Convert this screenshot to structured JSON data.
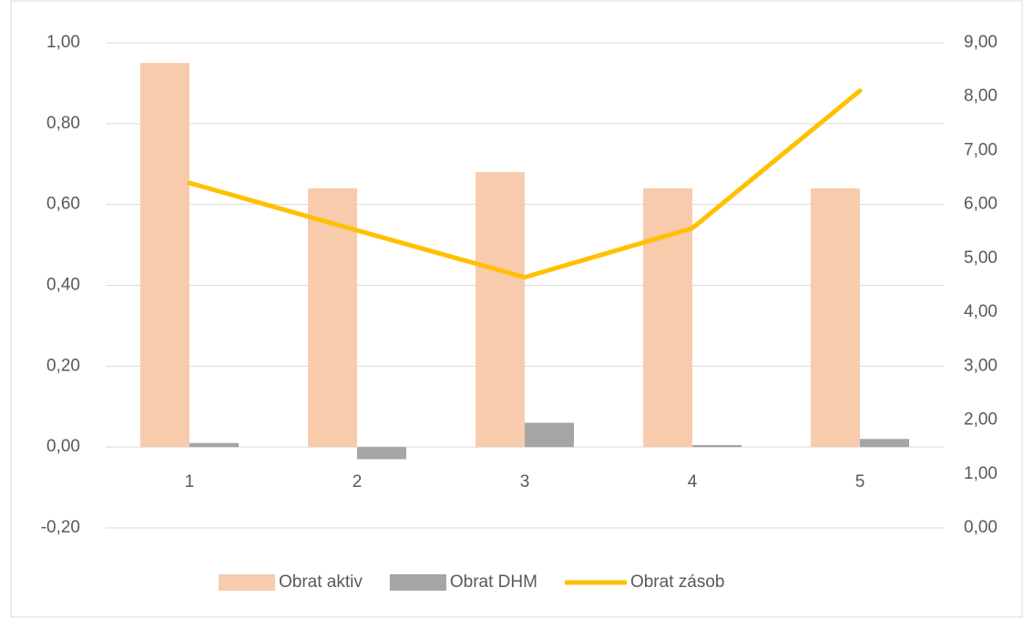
{
  "chart_data": {
    "type": "bar_line",
    "categories": [
      "1",
      "2",
      "3",
      "4",
      "5"
    ],
    "series": [
      {
        "name": "Obrat aktiv",
        "type": "bar",
        "color": "#f8cbad",
        "values": [
          0.95,
          0.64,
          0.68,
          0.64,
          0.64
        ]
      },
      {
        "name": "Obrat DHM",
        "type": "bar",
        "color": "#a5a5a5",
        "values": [
          0.01,
          -0.03,
          0.06,
          0.005,
          0.02
        ]
      },
      {
        "name": "Obrat zásob",
        "type": "line",
        "axis": "y2",
        "color": "#ffc000",
        "values": [
          6.4,
          5.52,
          4.65,
          5.56,
          8.11
        ]
      }
    ],
    "ylim": [
      -0.2,
      1.0
    ],
    "yticks": [
      {
        "value": -0.2,
        "label": "-0,20"
      },
      {
        "value": 0,
        "label": "0,00"
      },
      {
        "value": 0.2,
        "label": "0,20"
      },
      {
        "value": 0.4,
        "label": "0,40"
      },
      {
        "value": 0.6,
        "label": "0,60"
      },
      {
        "value": 0.8,
        "label": "0,80"
      },
      {
        "value": 1.0,
        "label": "1,00"
      }
    ],
    "y2lim": [
      0,
      9
    ],
    "y2ticks": [
      {
        "value": 0,
        "label": "0,00"
      },
      {
        "value": 1,
        "label": "1,00"
      },
      {
        "value": 2,
        "label": "2,00"
      },
      {
        "value": 3,
        "label": "3,00"
      },
      {
        "value": 4,
        "label": "4,00"
      },
      {
        "value": 5,
        "label": "5,00"
      },
      {
        "value": 6,
        "label": "6,00"
      },
      {
        "value": 7,
        "label": "7,00"
      },
      {
        "value": 8,
        "label": "8,00"
      },
      {
        "value": 9,
        "label": "9,00"
      }
    ],
    "grid": true,
    "legend": "bottom"
  }
}
